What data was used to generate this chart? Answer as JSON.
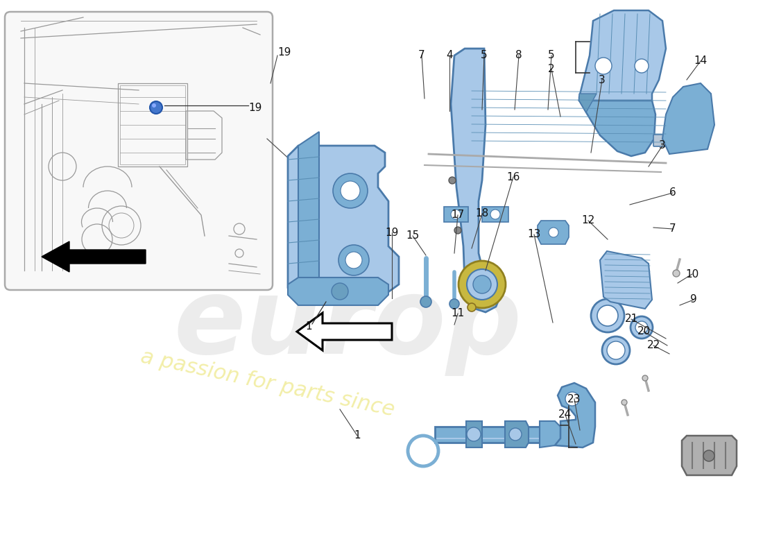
{
  "bg_color": "#ffffff",
  "blue_light": "#a8c8e8",
  "blue_mid": "#7bafd4",
  "blue_dark": "#5a8fb5",
  "blue_edge": "#4a7aaa",
  "blue_shadow": "#6a9fc0",
  "yellow": "#c8b840",
  "gray_line": "#888888",
  "label_color": "#111111",
  "inset_bg": "#ffffff",
  "screw_blue": "#4477cc",
  "wm_gray": "#e0e0e0",
  "wm_yellow": "#e8e060"
}
